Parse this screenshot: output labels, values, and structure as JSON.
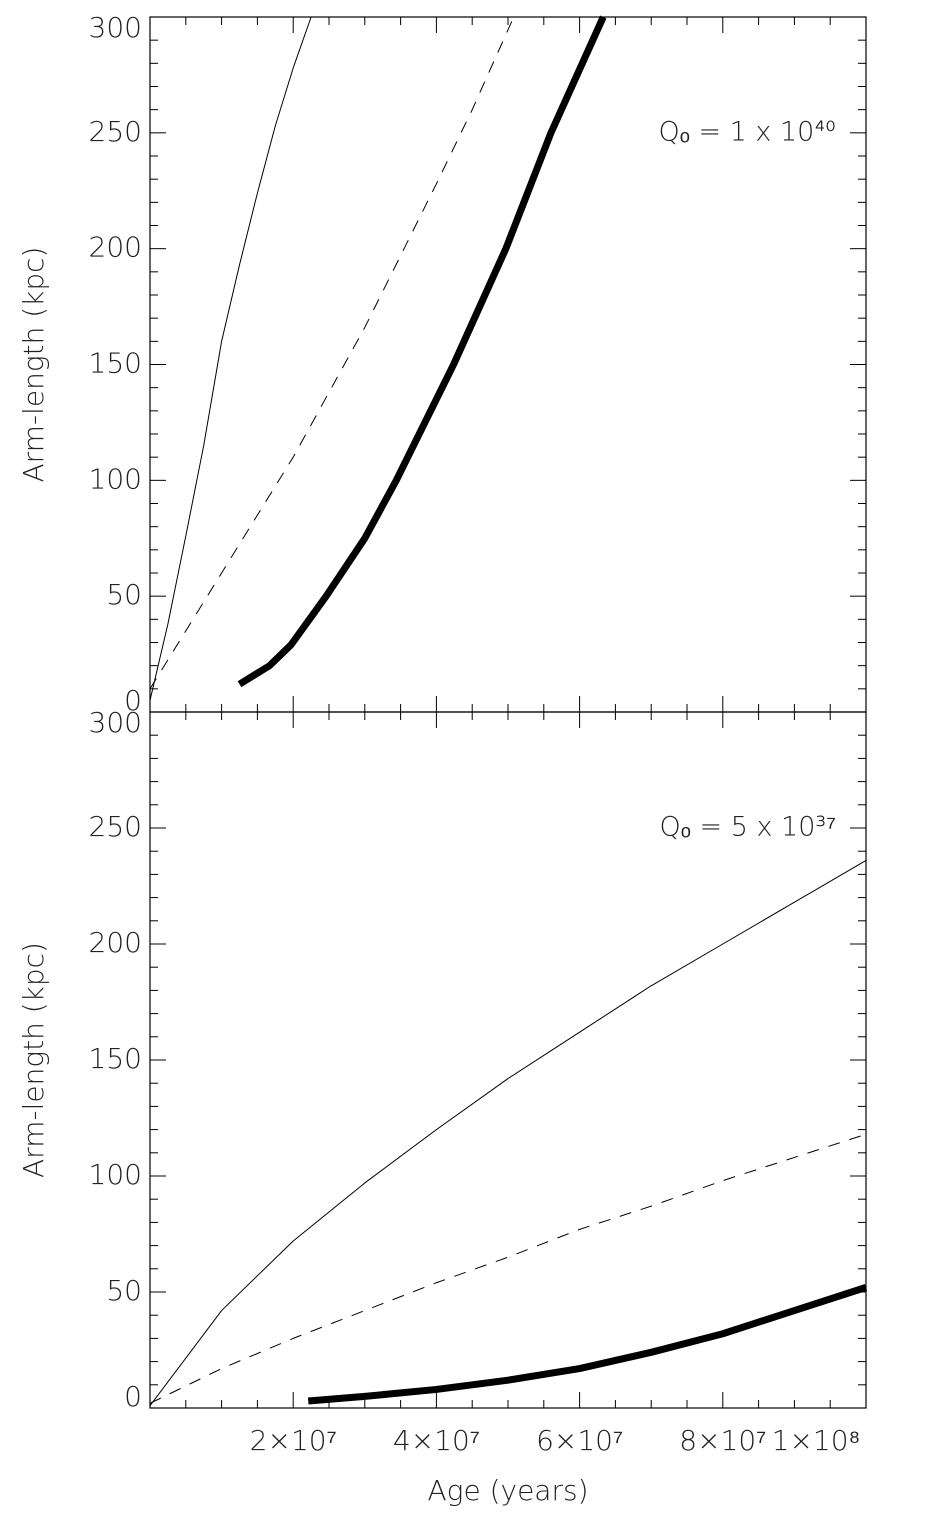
{
  "chart_data": [
    {
      "type": "line",
      "ylabel": "Arm-length (kpc)",
      "annotation": "Qₒ = 1 x 10⁴⁰",
      "xlim": [
        0,
        100000000
      ],
      "ylim": [
        0,
        300
      ],
      "xticks": [
        20000000,
        40000000,
        60000000,
        80000000,
        100000000
      ],
      "yticks": [
        0,
        50,
        100,
        150,
        200,
        250,
        300
      ],
      "series": [
        {
          "color": "#000000",
          "linestyle": "solid",
          "linewidth": 1,
          "x": [
            0,
            2500000,
            5000000,
            7500000,
            10000000,
            12500000,
            15000000,
            17500000,
            20000000,
            22500000
          ],
          "values": [
            5,
            38,
            76,
            115,
            160,
            193,
            224,
            253,
            278,
            300
          ]
        },
        {
          "color": "#000000",
          "linestyle": "dashed",
          "linewidth": 1,
          "x": [
            0,
            5000000,
            10000000,
            15000000,
            20000000,
            25000000,
            30000000,
            35000000,
            40000000,
            45000000,
            50800000
          ],
          "values": [
            10,
            35,
            60,
            85,
            110,
            138,
            166,
            197,
            228,
            260,
            300
          ]
        },
        {
          "color": "#000000",
          "linestyle": "solid",
          "linewidth": 7,
          "x": [
            12500000,
            16700000,
            19700000,
            24600000,
            30000000,
            34400000,
            42400000,
            49700000,
            56000000,
            63300000
          ],
          "values": [
            12,
            20,
            29,
            50,
            75,
            100,
            150,
            200,
            250,
            300
          ]
        }
      ]
    },
    {
      "type": "line",
      "xlabel": "Age (years)",
      "ylabel": "Arm-length (kpc)",
      "annotation": "Qₒ = 5 x 10³⁷",
      "xlim": [
        0,
        100000000
      ],
      "ylim": [
        0,
        300
      ],
      "xticks": [
        {
          "value": 20000000,
          "label": "2×10⁷"
        },
        {
          "value": 40000000,
          "label": "4×10⁷"
        },
        {
          "value": 60000000,
          "label": "6×10⁷"
        },
        {
          "value": 80000000,
          "label": "8×10⁷"
        },
        {
          "value": 100000000,
          "label": "1×10⁸"
        }
      ],
      "yticks": [
        0,
        50,
        100,
        150,
        200,
        250,
        300
      ],
      "series": [
        {
          "color": "#000000",
          "linestyle": "solid",
          "linewidth": 1,
          "x": [
            0,
            10000000,
            20000000,
            30000000,
            40000000,
            50000000,
            60000000,
            70000000,
            80000000,
            90000000,
            100000000
          ],
          "values": [
            1,
            42,
            72,
            97,
            120,
            142,
            162,
            182,
            200,
            218,
            236
          ]
        },
        {
          "color": "#000000",
          "linestyle": "dashed",
          "linewidth": 1,
          "x": [
            0,
            10000000,
            20000000,
            30000000,
            40000000,
            50000000,
            60000000,
            70000000,
            80000000,
            90000000,
            100000000
          ],
          "values": [
            2,
            17,
            30,
            42,
            54,
            65,
            77,
            87,
            98,
            108,
            118
          ]
        },
        {
          "color": "#000000",
          "linestyle": "solid",
          "linewidth": 7,
          "x": [
            22100000,
            30000000,
            40000000,
            50000000,
            60000000,
            70000000,
            80000000,
            90000000,
            100000000
          ],
          "values": [
            3,
            5,
            8,
            12,
            17,
            24,
            32,
            42,
            52
          ]
        }
      ]
    }
  ]
}
